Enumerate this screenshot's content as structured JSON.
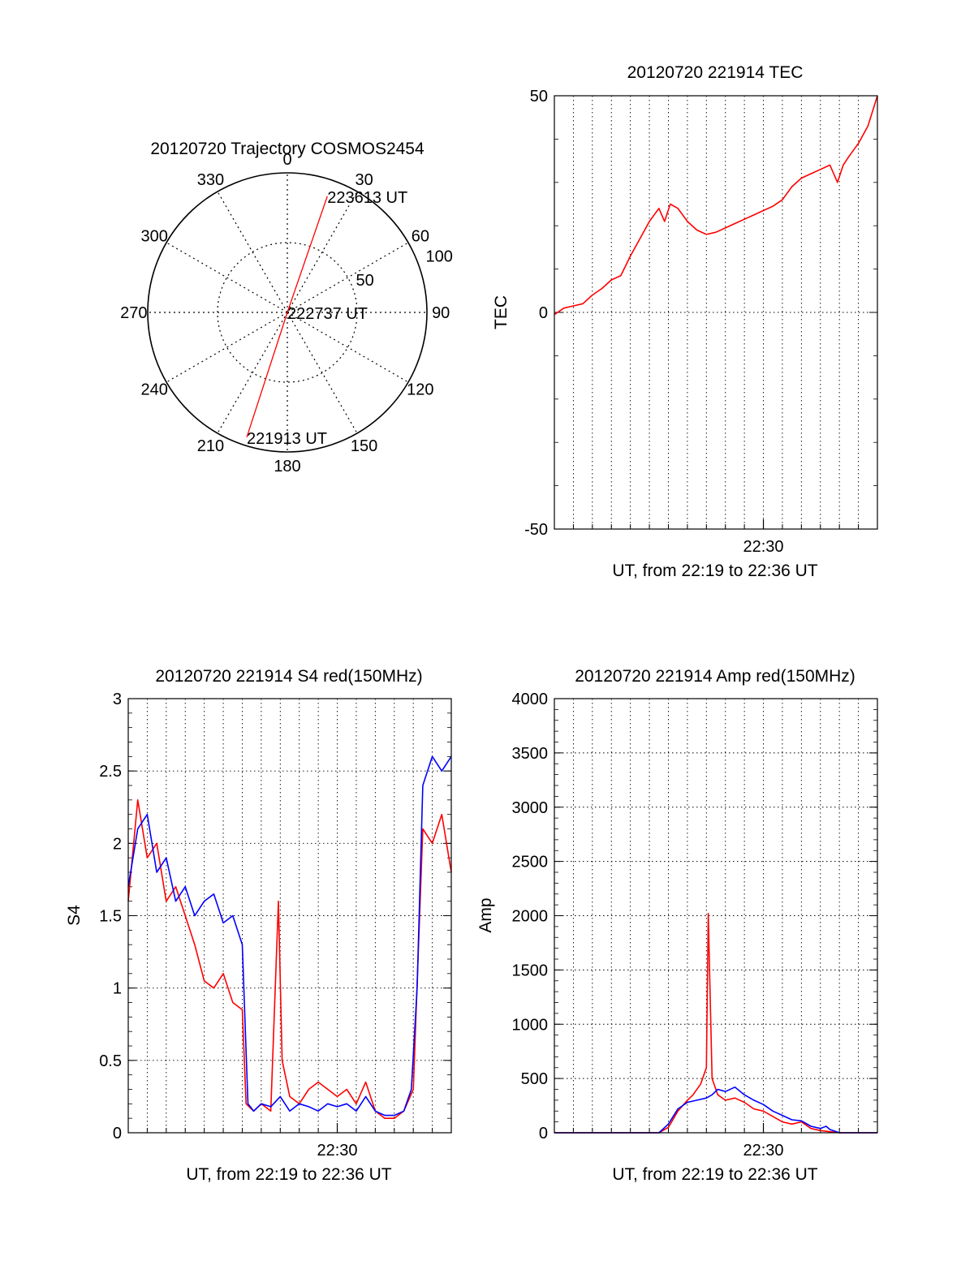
{
  "chart_data": [
    {
      "type": "polar",
      "title": "20120720 Trajectory COSMOS2454",
      "azimuth_labels": [
        "0",
        "30",
        "60",
        "90",
        "120",
        "150",
        "180",
        "210",
        "240",
        "270",
        "300",
        "330"
      ],
      "radial_labels": [
        "50",
        "100"
      ],
      "radial_range": [
        0,
        100
      ],
      "grid": true,
      "trajectory": {
        "color": "#ff0000",
        "points": [
          {
            "azimuth": 198,
            "r": 94
          },
          {
            "azimuth": 0,
            "r": 0
          },
          {
            "azimuth": 19,
            "r": 88
          }
        ],
        "annotations": [
          {
            "text": "221913 UT",
            "azimuth": 198,
            "r": 94
          },
          {
            "text": "222737 UT",
            "azimuth": 0,
            "r": 0
          },
          {
            "text": "223613 UT",
            "azimuth": 19,
            "r": 88
          }
        ]
      }
    },
    {
      "type": "line",
      "title": "20120720 221914 TEC",
      "xlabel": "UT, from 22:19 to 22:36 UT",
      "ylabel": "TEC",
      "x_range_minutes": [
        0,
        17
      ],
      "x_tick_labels": [
        {
          "label": "22:30",
          "minute": 11
        }
      ],
      "ylim": [
        -50,
        50
      ],
      "y_ticks": [
        -50,
        0,
        50
      ],
      "grid": true,
      "series": [
        {
          "color": "#ff0000",
          "x": [
            0,
            0.5,
            1,
            1.5,
            2,
            2.5,
            3,
            3.5,
            4,
            4.5,
            5,
            5.5,
            5.8,
            6.1,
            6.5,
            7,
            7.5,
            8,
            8.5,
            9,
            9.5,
            10,
            10.5,
            11,
            11.5,
            12,
            12.5,
            13,
            13.5,
            14,
            14.5,
            14.9,
            15.2,
            15.5,
            16,
            16.5,
            17
          ],
          "values": [
            -0.5,
            1,
            1.5,
            2,
            4,
            5.5,
            7.5,
            8.5,
            13,
            17,
            21,
            24,
            21,
            25,
            24,
            21,
            19,
            18,
            18.5,
            19.5,
            20.5,
            21.5,
            22.5,
            23.5,
            24.5,
            26,
            29,
            31,
            32,
            33,
            34,
            30,
            34,
            36,
            39,
            43,
            50
          ]
        }
      ]
    },
    {
      "type": "line",
      "title": "20120720 221914 S4 red(150MHz)",
      "xlabel": "UT, from 22:19 to 22:36 UT",
      "ylabel": "S4",
      "x_range_minutes": [
        0,
        17
      ],
      "x_tick_labels": [
        {
          "label": "22:30",
          "minute": 11
        }
      ],
      "ylim": [
        0,
        3
      ],
      "y_ticks": [
        0,
        0.5,
        1,
        1.5,
        2,
        2.5,
        3
      ],
      "grid": true,
      "series": [
        {
          "color": "#ff0000",
          "x": [
            0,
            0.5,
            1,
            1.5,
            2,
            2.5,
            3,
            3.5,
            4,
            4.5,
            5,
            5.5,
            6,
            6.2,
            6.6,
            7,
            7.5,
            7.9,
            8.1,
            8.5,
            9,
            9.5,
            10,
            10.5,
            11,
            11.5,
            12,
            12.5,
            13,
            13.5,
            14,
            14.5,
            15,
            15.5,
            16,
            16.5,
            17
          ],
          "values": [
            1.6,
            2.3,
            1.9,
            2.0,
            1.6,
            1.7,
            1.5,
            1.3,
            1.05,
            1.0,
            1.1,
            0.9,
            0.85,
            0.2,
            0.15,
            0.2,
            0.15,
            1.6,
            0.5,
            0.25,
            0.2,
            0.3,
            0.35,
            0.3,
            0.25,
            0.3,
            0.2,
            0.35,
            0.15,
            0.1,
            0.1,
            0.15,
            0.3,
            2.1,
            2.0,
            2.2,
            1.8
          ]
        },
        {
          "color": "#0000ff",
          "x": [
            0,
            0.5,
            1,
            1.5,
            2,
            2.5,
            3,
            3.5,
            4,
            4.5,
            5,
            5.5,
            6,
            6.3,
            6.6,
            7,
            7.5,
            8,
            8.5,
            9,
            9.5,
            10,
            10.5,
            11,
            11.5,
            12,
            12.5,
            13,
            13.5,
            14,
            14.5,
            14.9,
            15.2,
            15.5,
            16,
            16.5,
            17
          ],
          "values": [
            1.7,
            2.1,
            2.2,
            1.8,
            1.9,
            1.6,
            1.7,
            1.5,
            1.6,
            1.65,
            1.45,
            1.5,
            1.3,
            0.2,
            0.15,
            0.2,
            0.18,
            0.25,
            0.15,
            0.2,
            0.18,
            0.15,
            0.2,
            0.18,
            0.2,
            0.15,
            0.25,
            0.15,
            0.12,
            0.12,
            0.15,
            0.3,
            1.0,
            2.4,
            2.6,
            2.5,
            2.6
          ]
        }
      ]
    },
    {
      "type": "line",
      "title": "20120720 221914 Amp red(150MHz)",
      "xlabel": "UT, from 22:19 to 22:36 UT",
      "ylabel": "Amp",
      "x_range_minutes": [
        0,
        17
      ],
      "x_tick_labels": [
        {
          "label": "22:30",
          "minute": 11
        }
      ],
      "ylim": [
        0,
        4000
      ],
      "y_ticks": [
        0,
        500,
        1000,
        1500,
        2000,
        2500,
        3000,
        3500,
        4000
      ],
      "grid": true,
      "series": [
        {
          "color": "#ff0000",
          "x": [
            0,
            5.5,
            6,
            6.5,
            7,
            7.3,
            7.7,
            8,
            8.1,
            8.3,
            8.6,
            9,
            9.5,
            10,
            10.5,
            11,
            11.5,
            12,
            12.5,
            13,
            13.5,
            14,
            14.5,
            15,
            17
          ],
          "values": [
            0,
            0,
            50,
            200,
            300,
            350,
            450,
            600,
            2020,
            500,
            350,
            300,
            320,
            280,
            220,
            200,
            150,
            100,
            80,
            100,
            40,
            20,
            10,
            0,
            0
          ]
        },
        {
          "color": "#0000ff",
          "x": [
            0,
            5.5,
            6,
            6.5,
            7,
            7.5,
            8,
            8.3,
            8.6,
            9,
            9.5,
            10,
            10.5,
            11,
            11.5,
            12,
            12.5,
            13,
            13.5,
            14,
            14.3,
            14.5,
            15,
            17
          ],
          "values": [
            0,
            0,
            80,
            220,
            280,
            300,
            320,
            350,
            400,
            380,
            420,
            350,
            300,
            260,
            200,
            160,
            120,
            110,
            60,
            40,
            60,
            30,
            0,
            0
          ]
        }
      ]
    }
  ]
}
